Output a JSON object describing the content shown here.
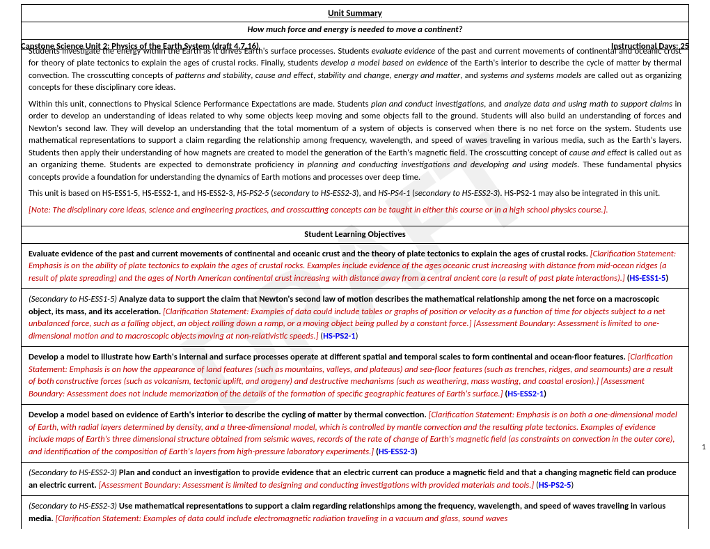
{
  "watermark": "DRAFT",
  "header": {
    "left": "Capstone Science Unit 2: Physics of the Earth System (draft 4.7.16)",
    "right": "Instructional Days: 25"
  },
  "pageNumber": "1",
  "unitSummary": {
    "heading": "Unit Summary",
    "question": "How much force and energy is needed to move a continent?",
    "p1a": "Students investigate the energy within the Earth as it drives Earth's surface processes. Students ",
    "p1b": "evaluate evidence",
    "p1c": " of the past and current movements of continental and oceanic crust for theory of plate tectonics to explain the ages of crustal rocks. Finally, students ",
    "p1d": "develop a model based on evidence",
    "p1e": " of the Earth's interior to describe the cycle of matter by thermal convection. The crosscutting concepts of ",
    "p1f": "patterns and stability",
    "p1g": ", ",
    "p1h": "cause and effect",
    "p1i": ", ",
    "p1j": "stability and change, energy and matter",
    "p1k": ", and ",
    "p1l": "systems and systems models",
    "p1m": " are called out as organizing concepts for these disciplinary core ideas.",
    "p2a": "Within this unit, connections to Physical Science Performance Expectations are made. Students ",
    "p2b": "plan and conduct investigations",
    "p2c": ", and ",
    "p2d": "analyze data and using math to support claims",
    "p2e": " in order to develop an understanding of ideas related to why some objects keep moving and some objects fall to the ground. Students will also build an understanding of forces and Newton's second law. They will develop an understanding that the total momentum of a system of objects is conserved when there is no net force on the system. Students use mathematical representations to support a claim regarding the relationship among frequency, wavelength, and speed of waves traveling in various media, such as the Earth's layers. Students then apply their understanding of how magnets are created to model the generation of the Earth's magnetic field. The crosscutting concept of ",
    "p2f": "cause and effect",
    "p2g": " is called out as an organizing theme. Students are expected to demonstrate proficiency ",
    "p2h": "in planning and conducting investigations and developing and using models",
    "p2i": ". These fundamental physics concepts provide a foundation for understanding the dynamics of Earth motions and processes over deep time.",
    "p3a": "This unit is based on HS-ESS1-5, HS-ESS2-1, and HS-ESS2-3, ",
    "p3b": "HS-PS2-5",
    "p3c": " (",
    "p3d": "secondary to HS-ESS2-3",
    "p3e": "), and ",
    "p3f": "HS-PS4-1",
    "p3g": " (",
    "p3h": "secondary to HS-ESS2-3",
    "p3i": "). HS-PS2-1 may also be integrated in this unit.",
    "note": "[Note: The disciplinary core ideas, science and engineering practices, and crosscutting concepts can be taught in either this course or in a high school physics course.]."
  },
  "objectives": {
    "heading": "Student Learning Objectives",
    "o1": {
      "bold": "Evaluate evidence of the past and current movements of continental and oceanic crust and the theory of plate tectonics to explain the ages of crustal rocks.",
      "red": "[Clarification Statement: Emphasis is on the ability of plate tectonics to explain the ages of crustal rocks. Examples include evidence of the ages oceanic crust increasing with distance from mid-ocean ridges (a result of plate spreading) and the ages of North American continental crust increasing with distance away from a central ancient core (a result of past plate interactions).]",
      "space": " (",
      "code": "HS-ESS1-5",
      "close": ")"
    },
    "o2": {
      "prefix": "(Secondary to HS-ESS1-5) ",
      "bold": "Analyze data to support the claim that Newton's second law of motion describes the mathematical relationship among the net force on a macroscopic object, its mass, and its acceleration.",
      "red": " [Clarification Statement:  Examples of data could include tables or graphs of position or velocity as a function of time for objects subject to a net unbalanced force, such as a falling object, an object rolling down a ramp, or a moving object being pulled by a constant force.] [Assessment Boundary:  Assessment is limited to one-dimensional motion and to macroscopic objects moving at non-relativistic speeds.]",
      "space": " (",
      "code": "HS-PS2-1",
      "close": ")"
    },
    "o3": {
      "bold": "Develop a model to illustrate how Earth's internal and surface processes operate at different spatial and temporal scales to form continental and ocean-floor features.",
      "red": " [Clarification Statement: Emphasis is on how the appearance of land features (such as mountains, valleys, and plateaus) and sea-floor features (such as trenches, ridges, and seamounts) are a result of both constructive forces (such as volcanism, tectonic uplift, and orogeny) and destructive mechanisms (such as weathering, mass wasting, and coastal erosion).] [Assessment Boundary: Assessment does not include memorization of the details of the formation of specific geographic features of Earth's surface.]",
      "space": " (",
      "code": "HS-ESS2-1",
      "close": ")"
    },
    "o4": {
      "bold": "Develop a model based on evidence of Earth's interior to describe the cycling of matter by thermal convection.",
      "red": " [Clarification Statement: Emphasis is on both a one-dimensional model of Earth, with radial layers determined by density, and a three-dimensional model, which is controlled by mantle convection and the resulting plate tectonics. Examples of evidence include maps of Earth's three dimensional structure obtained from seismic waves, records of the rate of change of Earth's magnetic field (as constraints on convection in the outer core), and identification of the composition of Earth's layers from high-pressure laboratory experiments.]",
      "space": " (",
      "code": "HS-ESS2-3",
      "close": ")"
    },
    "o5": {
      "prefix": "(Secondary to HS-ESS2-3) ",
      "bold": "Plan and conduct an investigation to provide evidence that an electric current can produce a magnetic field and that a changing magnetic field can produce an electric current.",
      "red": " [Assessment Boundary: Assessment is limited to designing and conducting investigations with provided materials and tools.]",
      "space": " (",
      "code": "HS-PS2-5",
      "close": ")"
    },
    "o6": {
      "prefix": "(Secondary to HS-ESS2-3) ",
      "bold": "Use mathematical representations to support a claim regarding relationships among the frequency, wavelength, and speed of waves traveling in various media.",
      "red": " [Clarification Statement:  Examples of data could include electromagnetic radiation traveling in a vacuum and glass, sound waves"
    }
  }
}
